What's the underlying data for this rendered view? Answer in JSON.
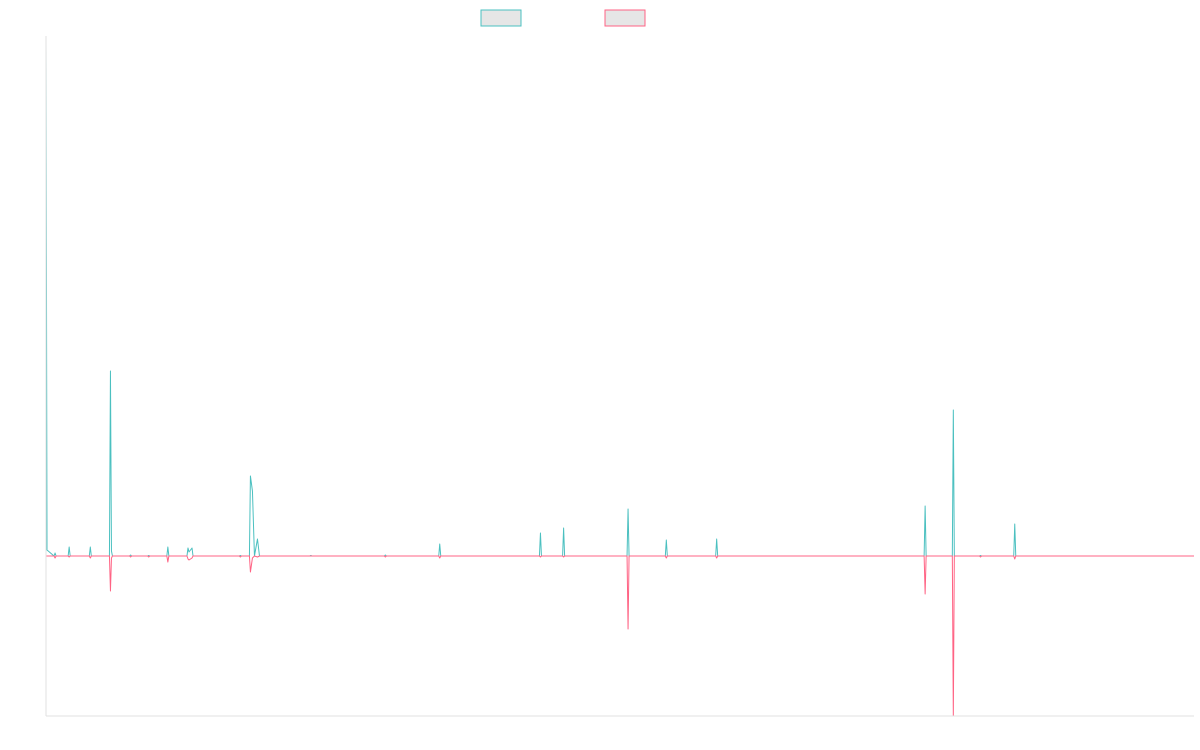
{
  "chart_data": {
    "type": "line",
    "title": "",
    "xlabel": "",
    "ylabel": "",
    "grid": false,
    "legend_position": "top-center",
    "y_range": [
      -160,
      520
    ],
    "colors": {
      "series_a_stroke": "#4bc0c0",
      "series_a_fill": "#e6e6e6",
      "series_b_stroke": "#ff6384",
      "series_b_fill": "#e6e6e6",
      "axis": "#e0e0e0"
    },
    "series": [
      {
        "name": "",
        "points": [
          [
            0,
            512
          ],
          [
            1,
            6
          ],
          [
            8,
            0
          ],
          [
            9,
            3
          ],
          [
            10,
            0
          ],
          [
            22,
            0
          ],
          [
            23,
            9
          ],
          [
            24,
            0
          ],
          [
            43,
            0
          ],
          [
            44,
            9
          ],
          [
            45,
            0
          ],
          [
            63,
            0
          ],
          [
            64,
            185
          ],
          [
            65,
            5
          ],
          [
            66,
            0
          ],
          [
            83,
            0
          ],
          [
            84,
            1
          ],
          [
            85,
            0
          ],
          [
            101,
            0
          ],
          [
            102,
            0.5
          ],
          [
            103,
            0
          ],
          [
            120,
            0
          ],
          [
            121,
            9
          ],
          [
            122,
            0
          ],
          [
            140,
            0
          ],
          [
            141,
            8
          ],
          [
            142,
            4
          ],
          [
            145,
            8
          ],
          [
            146,
            0
          ],
          [
            192,
            0
          ],
          [
            193,
            0.5
          ],
          [
            194,
            0
          ],
          [
            202,
            0
          ],
          [
            203,
            80
          ],
          [
            205,
            65
          ],
          [
            207,
            0
          ],
          [
            210,
            17
          ],
          [
            212,
            0
          ],
          [
            262,
            0
          ],
          [
            263,
            0.5
          ],
          [
            264,
            0
          ],
          [
            336,
            0
          ],
          [
            337,
            1
          ],
          [
            338,
            0
          ],
          [
            390,
            0
          ],
          [
            391,
            12
          ],
          [
            392,
            0
          ],
          [
            490,
            0
          ],
          [
            491,
            23
          ],
          [
            492,
            0
          ],
          [
            513,
            0
          ],
          [
            514,
            28
          ],
          [
            515,
            0
          ],
          [
            577,
            0
          ],
          [
            578,
            47
          ],
          [
            579,
            0
          ],
          [
            615,
            0
          ],
          [
            616,
            16
          ],
          [
            617,
            0
          ],
          [
            665,
            0
          ],
          [
            666,
            17
          ],
          [
            667,
            0
          ],
          [
            872,
            0
          ],
          [
            873,
            50
          ],
          [
            874,
            0
          ],
          [
            900,
            0
          ],
          [
            901,
            146
          ],
          [
            902,
            0
          ],
          [
            927,
            0
          ],
          [
            928,
            0.5
          ],
          [
            929,
            0
          ],
          [
            961,
            0
          ],
          [
            962,
            32
          ],
          [
            963,
            0
          ],
          [
            1140,
            0
          ]
        ]
      },
      {
        "name": "",
        "points": [
          [
            0,
            0
          ],
          [
            8,
            0
          ],
          [
            9,
            -2
          ],
          [
            10,
            0
          ],
          [
            22,
            0
          ],
          [
            23,
            -1
          ],
          [
            24,
            0
          ],
          [
            43,
            0
          ],
          [
            44,
            -2
          ],
          [
            45,
            0
          ],
          [
            63,
            0
          ],
          [
            64,
            -35
          ],
          [
            65,
            -2
          ],
          [
            66,
            0
          ],
          [
            83,
            0
          ],
          [
            84,
            -1
          ],
          [
            85,
            0
          ],
          [
            101,
            0
          ],
          [
            102,
            -1
          ],
          [
            103,
            0
          ],
          [
            120,
            0
          ],
          [
            121,
            -6
          ],
          [
            122,
            0
          ],
          [
            140,
            0
          ],
          [
            141,
            -3
          ],
          [
            142,
            -4
          ],
          [
            145,
            -2
          ],
          [
            146,
            0
          ],
          [
            192,
            0
          ],
          [
            193,
            -1
          ],
          [
            194,
            0
          ],
          [
            202,
            0
          ],
          [
            203,
            -16
          ],
          [
            205,
            -2
          ],
          [
            207,
            0
          ],
          [
            210,
            -1
          ],
          [
            212,
            0
          ],
          [
            336,
            0
          ],
          [
            337,
            -1
          ],
          [
            338,
            0
          ],
          [
            390,
            0
          ],
          [
            391,
            -2
          ],
          [
            392,
            0
          ],
          [
            490,
            0
          ],
          [
            491,
            -1
          ],
          [
            492,
            0
          ],
          [
            513,
            0
          ],
          [
            514,
            -1
          ],
          [
            515,
            0
          ],
          [
            577,
            0
          ],
          [
            578,
            -73
          ],
          [
            579,
            0
          ],
          [
            615,
            0
          ],
          [
            616,
            -2
          ],
          [
            617,
            0
          ],
          [
            665,
            0
          ],
          [
            666,
            -2
          ],
          [
            667,
            0
          ],
          [
            872,
            0
          ],
          [
            873,
            -38
          ],
          [
            874,
            0
          ],
          [
            900,
            0
          ],
          [
            901,
            -160
          ],
          [
            902,
            0
          ],
          [
            927,
            0
          ],
          [
            928,
            -1
          ],
          [
            929,
            0
          ],
          [
            961,
            0
          ],
          [
            962,
            -3
          ],
          [
            963,
            0
          ],
          [
            1140,
            0
          ]
        ]
      }
    ]
  }
}
